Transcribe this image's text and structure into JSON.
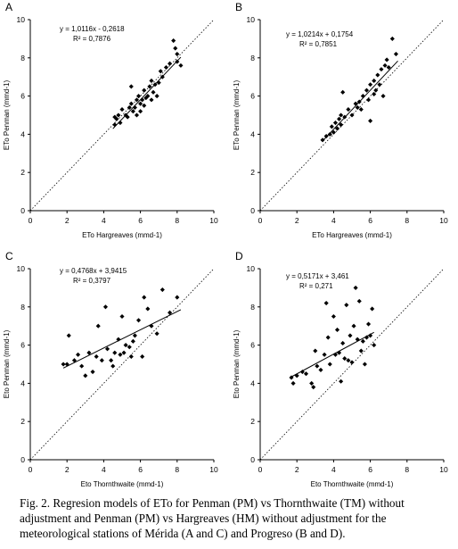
{
  "chart_data": [
    {
      "panel_label": "A",
      "type": "scatter",
      "xlabel": "ETo Hargreaves (mmd-1)",
      "ylabel": "ETo Penman (mmd-1)",
      "xlim": [
        0,
        10
      ],
      "ylim": [
        0,
        10
      ],
      "xticks": [
        "0",
        "2",
        "4",
        "6",
        "8",
        "10"
      ],
      "yticks": [
        "0",
        "2",
        "4",
        "6",
        "8",
        "10"
      ],
      "equation": "y = 1,0116x - 0,2618",
      "r2": "R² = 0,7876",
      "fit": {
        "slope": 1.0116,
        "intercept": -0.2618,
        "x_range": [
          4.5,
          8.2
        ]
      },
      "identity_line": true,
      "points": [
        [
          4.6,
          4.5
        ],
        [
          4.6,
          4.9
        ],
        [
          4.7,
          4.8
        ],
        [
          4.8,
          5.0
        ],
        [
          4.9,
          4.6
        ],
        [
          5.0,
          5.3
        ],
        [
          5.2,
          5.0
        ],
        [
          5.3,
          4.9
        ],
        [
          5.4,
          5.4
        ],
        [
          5.5,
          6.5
        ],
        [
          5.5,
          5.6
        ],
        [
          5.6,
          5.2
        ],
        [
          5.7,
          5.4
        ],
        [
          5.8,
          5.8
        ],
        [
          5.8,
          5.0
        ],
        [
          5.9,
          6.0
        ],
        [
          6.0,
          5.2
        ],
        [
          6.0,
          5.6
        ],
        [
          6.1,
          5.8
        ],
        [
          6.2,
          5.5
        ],
        [
          6.2,
          6.3
        ],
        [
          6.3,
          5.9
        ],
        [
          6.4,
          6.0
        ],
        [
          6.5,
          6.5
        ],
        [
          6.6,
          6.8
        ],
        [
          6.6,
          5.8
        ],
        [
          6.7,
          6.2
        ],
        [
          6.8,
          6.6
        ],
        [
          6.9,
          6.0
        ],
        [
          7.0,
          6.7
        ],
        [
          7.1,
          7.3
        ],
        [
          7.2,
          7.0
        ],
        [
          7.4,
          7.5
        ],
        [
          7.6,
          7.7
        ],
        [
          7.8,
          8.9
        ],
        [
          7.9,
          8.5
        ],
        [
          8.0,
          8.2
        ],
        [
          8.0,
          7.8
        ],
        [
          8.2,
          7.6
        ]
      ]
    },
    {
      "panel_label": "B",
      "type": "scatter",
      "xlabel": "ETo Hargreaves (mmd-1)",
      "ylabel": "ETo Penman (mmd-1)",
      "xlim": [
        0,
        10
      ],
      "ylim": [
        0,
        10
      ],
      "xticks": [
        "0",
        "2",
        "4",
        "6",
        "8",
        "10"
      ],
      "yticks": [
        "0",
        "2",
        "4",
        "6",
        "8",
        "10"
      ],
      "equation": "y = 1,0214x + 0,1754",
      "r2": "R² = 0,7851",
      "fit": {
        "slope": 1.0214,
        "intercept": 0.1754,
        "x_range": [
          3.4,
          7.5
        ]
      },
      "identity_line": true,
      "points": [
        [
          3.4,
          3.7
        ],
        [
          3.6,
          3.9
        ],
        [
          3.8,
          4.0
        ],
        [
          3.9,
          4.4
        ],
        [
          4.0,
          4.1
        ],
        [
          4.1,
          4.6
        ],
        [
          4.2,
          4.3
        ],
        [
          4.3,
          4.8
        ],
        [
          4.4,
          4.5
        ],
        [
          4.4,
          5.0
        ],
        [
          4.5,
          6.2
        ],
        [
          4.6,
          4.9
        ],
        [
          4.8,
          5.3
        ],
        [
          5.0,
          5.0
        ],
        [
          5.2,
          5.6
        ],
        [
          5.3,
          5.4
        ],
        [
          5.4,
          5.7
        ],
        [
          5.5,
          5.3
        ],
        [
          5.6,
          6.0
        ],
        [
          5.8,
          6.3
        ],
        [
          5.9,
          5.8
        ],
        [
          6.0,
          6.6
        ],
        [
          6.0,
          4.7
        ],
        [
          6.2,
          6.1
        ],
        [
          6.2,
          6.8
        ],
        [
          6.3,
          6.3
        ],
        [
          6.4,
          7.1
        ],
        [
          6.5,
          6.6
        ],
        [
          6.6,
          7.4
        ],
        [
          6.7,
          6.0
        ],
        [
          6.8,
          7.6
        ],
        [
          6.9,
          7.9
        ],
        [
          7.0,
          7.5
        ],
        [
          7.2,
          9.0
        ],
        [
          7.4,
          8.2
        ]
      ]
    },
    {
      "panel_label": "C",
      "type": "scatter",
      "xlabel": "Eto Thornthwaite (mmd-1)",
      "ylabel": "Eto Penman (mmd-1)",
      "xlim": [
        0,
        10
      ],
      "ylim": [
        0,
        10
      ],
      "xticks": [
        "0",
        "2",
        "4",
        "6",
        "8",
        "10"
      ],
      "yticks": [
        "0",
        "2",
        "4",
        "6",
        "8",
        "10"
      ],
      "equation": "y = 0,4768x + 3,9415",
      "r2": "R² = 0,3797",
      "fit": {
        "slope": 0.4768,
        "intercept": 3.9415,
        "x_range": [
          1.8,
          8.2
        ]
      },
      "identity_line": true,
      "points": [
        [
          1.8,
          5.0
        ],
        [
          2.0,
          5.0
        ],
        [
          2.1,
          6.5
        ],
        [
          2.4,
          5.2
        ],
        [
          2.6,
          5.5
        ],
        [
          2.8,
          4.9
        ],
        [
          3.0,
          4.4
        ],
        [
          3.2,
          5.6
        ],
        [
          3.4,
          4.6
        ],
        [
          3.6,
          5.4
        ],
        [
          3.7,
          7.0
        ],
        [
          3.9,
          5.2
        ],
        [
          4.1,
          8.0
        ],
        [
          4.2,
          5.8
        ],
        [
          4.4,
          5.2
        ],
        [
          4.5,
          4.9
        ],
        [
          4.6,
          5.6
        ],
        [
          4.8,
          6.3
        ],
        [
          4.9,
          5.5
        ],
        [
          5.0,
          7.5
        ],
        [
          5.1,
          5.6
        ],
        [
          5.2,
          6.0
        ],
        [
          5.4,
          5.9
        ],
        [
          5.5,
          5.4
        ],
        [
          5.6,
          6.2
        ],
        [
          5.7,
          6.5
        ],
        [
          5.9,
          7.3
        ],
        [
          6.1,
          5.4
        ],
        [
          6.2,
          8.5
        ],
        [
          6.4,
          7.9
        ],
        [
          6.6,
          7.0
        ],
        [
          6.9,
          6.6
        ],
        [
          7.2,
          8.9
        ],
        [
          7.6,
          7.7
        ],
        [
          8.0,
          8.5
        ]
      ]
    },
    {
      "panel_label": "D",
      "type": "scatter",
      "xlabel": "Eto Thornthwaite (mmd-1)",
      "ylabel": "Eto Penman (mmd-1)",
      "xlim": [
        0,
        10
      ],
      "ylim": [
        0,
        10
      ],
      "xticks": [
        "0",
        "2",
        "4",
        "6",
        "8",
        "10"
      ],
      "yticks": [
        "0",
        "2",
        "4",
        "6",
        "8",
        "10"
      ],
      "equation": "y = 0,5171x + 3,461",
      "r2": "R² = 0,271",
      "fit": {
        "slope": 0.5171,
        "intercept": 3.461,
        "x_range": [
          1.7,
          6.2
        ]
      },
      "identity_line": true,
      "points": [
        [
          1.7,
          4.3
        ],
        [
          1.8,
          4.0
        ],
        [
          2.0,
          4.4
        ],
        [
          2.3,
          4.6
        ],
        [
          2.5,
          4.5
        ],
        [
          2.8,
          4.0
        ],
        [
          2.9,
          3.8
        ],
        [
          3.0,
          5.7
        ],
        [
          3.1,
          4.9
        ],
        [
          3.3,
          4.7
        ],
        [
          3.5,
          5.5
        ],
        [
          3.6,
          8.2
        ],
        [
          3.7,
          6.4
        ],
        [
          3.8,
          5.0
        ],
        [
          4.0,
          7.5
        ],
        [
          4.1,
          5.5
        ],
        [
          4.2,
          6.8
        ],
        [
          4.3,
          5.6
        ],
        [
          4.4,
          4.1
        ],
        [
          4.5,
          6.1
        ],
        [
          4.6,
          5.3
        ],
        [
          4.7,
          8.1
        ],
        [
          4.8,
          5.2
        ],
        [
          4.9,
          6.5
        ],
        [
          5.0,
          5.1
        ],
        [
          5.1,
          7.0
        ],
        [
          5.2,
          9.0
        ],
        [
          5.3,
          6.3
        ],
        [
          5.4,
          8.3
        ],
        [
          5.5,
          5.7
        ],
        [
          5.6,
          6.2
        ],
        [
          5.7,
          5.0
        ],
        [
          5.8,
          6.4
        ],
        [
          5.9,
          7.1
        ],
        [
          6.0,
          6.5
        ],
        [
          6.1,
          7.9
        ],
        [
          6.2,
          6.0
        ]
      ]
    }
  ],
  "caption": "Fig. 2. Regresion models of ETo for Penman (PM) vs Thornthwaite (TM) without adjustment and Penman (PM) vs Hargreaves (HM) without adjustment for the meteorological stations of Mérida (A and C) and Progreso (B and D)."
}
